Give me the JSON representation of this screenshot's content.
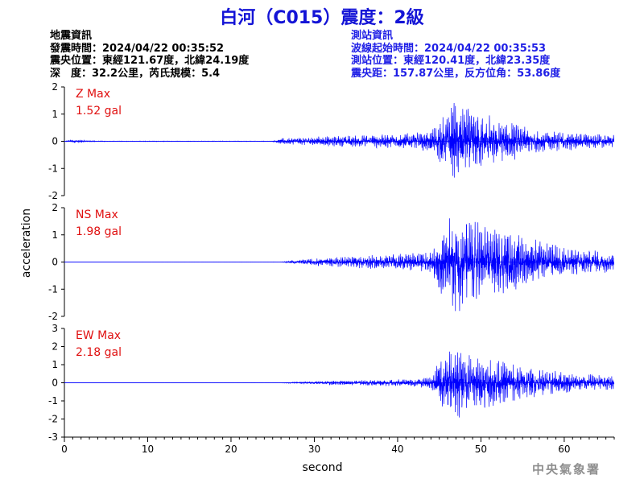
{
  "title": "白河（C015）震度：2級",
  "quake_info": {
    "heading": "地震資訊",
    "origin_time": "發震時間：2024/04/22 00:35:52",
    "epicenter": "震央位置：東經121.67度，北緯24.19度",
    "depth_magnitude": "深　度：32.2公里，芮氏規模：5.4"
  },
  "station_info": {
    "heading": "測站資訊",
    "wave_start": "波線起始時間：2024/04/22 00:35:53",
    "station_location": "測站位置：東經120.41度，北緯23.35度",
    "distance": "震央距：157.87公里，反方位角：53.86度"
  },
  "agency": "中央氣象署",
  "colors": {
    "title": "#1414d6",
    "trace": "#0000ff",
    "max_label": "#e01010",
    "station_text": "#1e1ee6"
  },
  "chart_data": {
    "type": "line",
    "xlabel": "second",
    "ylabel": "acceleration",
    "xlim": [
      0,
      66
    ],
    "xticks": [
      0,
      10,
      20,
      30,
      40,
      50,
      60
    ],
    "grid": false,
    "panels": [
      {
        "name": "Z",
        "max_label": "Z Max",
        "max_value": "1.52 gal",
        "ylim": [
          -2,
          2
        ],
        "yticks": [
          -2,
          -1,
          0,
          1,
          2
        ],
        "envelope": {
          "x": [
            0,
            1,
            2,
            3,
            5,
            25,
            26,
            30,
            35,
            40,
            44,
            45,
            46,
            47,
            48,
            50,
            52,
            55,
            58,
            62,
            66
          ],
          "amp": [
            0,
            0.08,
            0.06,
            0.02,
            0.01,
            0.01,
            0.12,
            0.18,
            0.22,
            0.3,
            0.4,
            0.8,
            1.2,
            1.52,
            1.3,
            1.1,
            0.9,
            0.6,
            0.4,
            0.3,
            0.25
          ]
        }
      },
      {
        "name": "NS",
        "max_label": "NS Max",
        "max_value": "1.98 gal",
        "ylim": [
          -2,
          2
        ],
        "yticks": [
          -2,
          -1,
          0,
          1,
          2
        ],
        "envelope": {
          "x": [
            0,
            26,
            28,
            32,
            36,
            40,
            44,
            45,
            46,
            47,
            48,
            50,
            52,
            55,
            58,
            62,
            66
          ],
          "amp": [
            0,
            0.005,
            0.08,
            0.18,
            0.25,
            0.3,
            0.4,
            1.2,
            1.6,
            1.98,
            1.7,
            1.5,
            1.3,
            1.0,
            0.7,
            0.5,
            0.35
          ]
        }
      },
      {
        "name": "EW",
        "max_label": "EW Max",
        "max_value": "2.18 gal",
        "ylim": [
          -3,
          3
        ],
        "yticks": [
          -3,
          -2,
          -1,
          0,
          1,
          2,
          3
        ],
        "envelope": {
          "x": [
            0,
            26,
            28,
            32,
            36,
            40,
            44,
            45,
            46,
            47,
            48,
            50,
            52,
            55,
            58,
            62,
            66
          ],
          "amp": [
            0,
            0.005,
            0.06,
            0.12,
            0.15,
            0.2,
            0.3,
            1.2,
            1.8,
            2.18,
            1.8,
            1.5,
            1.3,
            1.0,
            0.7,
            0.5,
            0.4
          ]
        }
      }
    ]
  }
}
